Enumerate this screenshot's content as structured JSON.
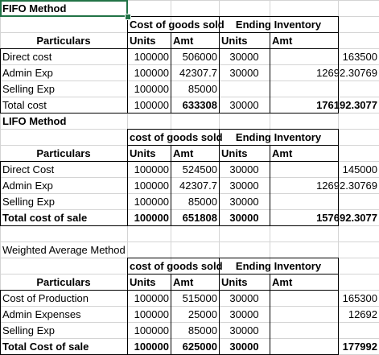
{
  "sheet": {
    "fifo": {
      "title": "FIFO Method",
      "hdr_cogs": "Cost of goods sold",
      "hdr_end": "Ending Inventory",
      "particulars": "Particulars",
      "units": "Units",
      "amt": "Amt",
      "units2": "Units",
      "amt2": "Amt",
      "rows": [
        {
          "label": "Direct cost",
          "u1": "100000",
          "a1": "506000",
          "u2": "30000",
          "a2": "163500"
        },
        {
          "label": "Admin Exp",
          "u1": "100000",
          "a1": "42307.7",
          "u2": "30000",
          "a2": "12692.30769"
        },
        {
          "label": "Selling Exp",
          "u1": "100000",
          "a1": "85000",
          "u2": "",
          "a2": ""
        },
        {
          "label": "Total cost",
          "u1": "100000",
          "a1": "633308",
          "u2": "30000",
          "a2": "176192.3077"
        }
      ]
    },
    "lifo": {
      "title": "LIFO Method",
      "hdr_cogs": "cost of goods sold",
      "hdr_end": "Ending Inventory",
      "particulars": "Particulars",
      "units": "Units",
      "amt": "Amt",
      "units2": "Units",
      "amt2": "Amt",
      "rows": [
        {
          "label": "Direct Cost",
          "u1": "100000",
          "a1": "524500",
          "u2": "30000",
          "a2": "145000"
        },
        {
          "label": "Admin Exp",
          "u1": "100000",
          "a1": "42307.7",
          "u2": "30000",
          "a2": "12692.30769"
        },
        {
          "label": "Selling Exp",
          "u1": "100000",
          "a1": "85000",
          "u2": "30000",
          "a2": ""
        },
        {
          "label": "Total cost of sale",
          "u1": "100000",
          "a1": "651808",
          "u2": "30000",
          "a2": "157692.3077"
        }
      ]
    },
    "wavg": {
      "title": "Weighted Average Method",
      "hdr_cogs": "cost of goods sold",
      "hdr_end": "Ending Inventory",
      "particulars": "Particulars",
      "units": "Units",
      "amt": "Amt",
      "units2": "Units",
      "amt2": "Amt",
      "rows": [
        {
          "label": "Cost of Production",
          "u1": "100000",
          "a1": "515000",
          "u2": "30000",
          "a2": "165300"
        },
        {
          "label": "Admin Expenses",
          "u1": "100000",
          "a1": "25000",
          "u2": "30000",
          "a2": "12692"
        },
        {
          "label": "Selling Exp",
          "u1": "100000",
          "a1": "85000",
          "u2": "30000",
          "a2": ""
        },
        {
          "label": "Total Cost of sale",
          "u1": "100000",
          "a1": "625000",
          "u2": "30000",
          "a2": "177992"
        }
      ]
    }
  },
  "colors": {
    "selection": "#217346",
    "gridline": "#d4d4d4",
    "border": "#000000"
  }
}
